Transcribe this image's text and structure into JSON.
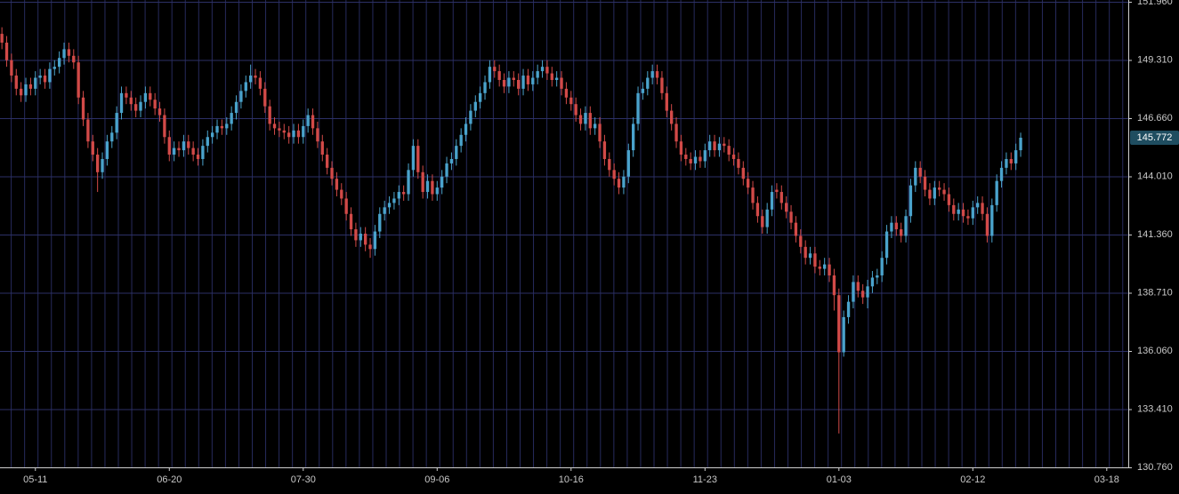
{
  "chart_data": {
    "type": "candlestick",
    "xlim": [
      -0.4,
      235.5
    ],
    "xticks": [
      {
        "value": 7,
        "label": "05-11"
      },
      {
        "value": 35,
        "label": "06-20"
      },
      {
        "value": 63,
        "label": "07-30"
      },
      {
        "value": 91,
        "label": "09-06"
      },
      {
        "value": 119,
        "label": "10-16"
      },
      {
        "value": 147,
        "label": "11-23"
      },
      {
        "value": 175,
        "label": "01-03"
      },
      {
        "value": 203,
        "label": "02-12"
      },
      {
        "value": 231,
        "label": "03-18"
      }
    ],
    "ylim": [
      130.76,
      151.96
    ],
    "yticks": [
      {
        "value": 151.96,
        "label": "151.960"
      },
      {
        "value": 149.31,
        "label": "149.310"
      },
      {
        "value": 146.66,
        "label": "146.660"
      },
      {
        "value": 144.01,
        "label": "144.010"
      },
      {
        "value": 141.36,
        "label": "141.360"
      },
      {
        "value": 138.71,
        "label": "138.710"
      },
      {
        "value": 136.06,
        "label": "136.060"
      },
      {
        "value": 133.41,
        "label": "133.410"
      },
      {
        "value": 130.76,
        "label": "130.760"
      }
    ],
    "grid": true,
    "up_color": "#4aa3cc",
    "down_color": "#d24a48",
    "last_price": 145.772,
    "open": [
      150.5,
      150.1,
      149.3,
      148.6,
      148.0,
      147.7,
      148.2,
      148.0,
      148.5,
      148.6,
      148.3,
      148.9,
      149.0,
      149.4,
      149.8,
      149.5,
      149.2,
      147.6,
      146.6,
      145.6,
      145.0,
      144.2,
      144.8,
      145.6,
      146.0,
      146.9,
      147.8,
      147.6,
      147.3,
      147.0,
      147.4,
      147.8,
      147.5,
      147.1,
      146.8,
      145.8,
      145.0,
      145.3,
      145.2,
      145.6,
      145.3,
      145.0,
      144.8,
      145.4,
      145.8,
      146.0,
      146.3,
      146.2,
      146.4,
      146.9,
      147.4,
      147.9,
      148.3,
      148.6,
      148.5,
      148.0,
      147.2,
      146.4,
      146.2,
      146.1,
      146.0,
      145.8,
      146.1,
      145.8,
      146.3,
      146.8,
      146.2,
      145.6,
      145.0,
      144.4,
      143.9,
      143.4,
      143.0,
      142.3,
      141.6,
      141.1,
      141.4,
      140.9,
      140.7,
      141.5,
      142.3,
      142.6,
      142.8,
      143.0,
      143.3,
      143.2,
      144.3,
      145.4,
      144.2,
      143.3,
      143.8,
      143.2,
      143.5,
      144.0,
      144.6,
      144.8,
      145.4,
      145.9,
      146.4,
      147.0,
      147.4,
      147.8,
      148.3,
      149.0,
      148.8,
      148.4,
      148.1,
      148.5,
      148.4,
      148.0,
      148.6,
      148.2,
      148.5,
      148.8,
      149.0,
      148.7,
      148.4,
      148.5,
      148.0,
      147.6,
      147.3,
      146.8,
      146.4,
      146.9,
      146.2,
      146.4,
      145.6,
      144.8,
      144.3,
      143.9,
      143.5,
      144.0,
      145.2,
      146.4,
      147.8,
      148.0,
      148.5,
      148.8,
      148.5,
      147.8,
      147.0,
      146.4,
      145.6,
      145.0,
      144.8,
      144.6,
      144.9,
      144.7,
      145.2,
      145.6,
      145.2,
      145.5,
      145.4,
      145.0,
      144.8,
      144.4,
      143.9,
      143.5,
      142.8,
      142.2,
      141.7,
      142.5,
      143.4,
      143.3,
      142.8,
      142.4,
      141.9,
      141.3,
      140.8,
      140.3,
      140.5,
      139.9,
      139.8,
      140.0,
      139.5,
      138.6,
      136.0,
      137.6,
      138.3,
      139.2,
      138.8,
      138.5,
      139.0,
      139.4,
      139.5,
      140.3,
      141.5,
      141.9,
      141.6,
      141.3,
      142.2,
      143.6,
      144.4,
      144.0,
      143.4,
      143.0,
      143.5,
      143.4,
      143.2,
      142.7,
      142.3,
      142.5,
      142.2,
      142.1,
      142.6,
      142.8,
      142.3,
      141.3,
      142.7,
      143.8,
      144.4,
      144.8,
      144.6,
      145.2
    ],
    "high": [
      150.8,
      150.4,
      149.6,
      148.9,
      148.3,
      148.5,
      148.5,
      148.8,
      148.9,
      148.9,
      149.2,
      149.3,
      149.7,
      150.1,
      150.1,
      149.8,
      149.5,
      147.9,
      146.9,
      145.9,
      145.3,
      145.1,
      145.9,
      146.3,
      147.2,
      148.1,
      148.1,
      147.9,
      147.6,
      147.7,
      148.1,
      148.1,
      147.8,
      147.4,
      147.1,
      146.1,
      145.6,
      145.6,
      145.9,
      145.9,
      145.6,
      145.3,
      145.7,
      146.1,
      146.3,
      146.6,
      146.6,
      146.7,
      147.2,
      147.7,
      148.2,
      148.6,
      149.1,
      148.9,
      148.8,
      148.3,
      147.5,
      146.7,
      146.5,
      146.4,
      146.3,
      146.4,
      146.4,
      146.6,
      147.1,
      147.1,
      146.5,
      145.9,
      145.3,
      144.7,
      144.2,
      143.7,
      143.3,
      142.6,
      141.9,
      141.7,
      141.7,
      141.2,
      141.8,
      142.6,
      142.9,
      143.1,
      143.3,
      143.6,
      143.6,
      144.6,
      145.7,
      145.7,
      144.5,
      144.1,
      144.1,
      143.8,
      144.3,
      144.9,
      145.1,
      145.7,
      146.2,
      146.7,
      147.3,
      147.7,
      148.1,
      148.6,
      149.3,
      149.3,
      149.1,
      148.7,
      148.8,
      148.8,
      148.7,
      148.9,
      148.9,
      148.8,
      149.1,
      149.3,
      149.3,
      149.0,
      148.8,
      148.8,
      148.3,
      147.9,
      147.6,
      147.1,
      147.2,
      147.2,
      146.7,
      146.7,
      145.9,
      145.1,
      144.6,
      144.2,
      144.3,
      145.5,
      146.7,
      148.1,
      148.3,
      148.8,
      149.1,
      149.1,
      148.8,
      148.1,
      147.3,
      146.7,
      145.9,
      145.3,
      145.1,
      145.2,
      145.2,
      145.5,
      145.9,
      145.9,
      145.8,
      145.8,
      145.7,
      145.3,
      145.1,
      144.7,
      144.2,
      143.8,
      143.1,
      142.5,
      142.8,
      143.6,
      143.7,
      143.6,
      143.1,
      142.7,
      142.2,
      141.6,
      141.1,
      140.8,
      140.8,
      140.2,
      140.3,
      140.3,
      139.8,
      138.9,
      137.9,
      138.6,
      139.5,
      139.5,
      139.1,
      139.3,
      139.7,
      139.8,
      140.6,
      141.8,
      142.2,
      142.2,
      141.9,
      142.5,
      143.9,
      144.7,
      144.7,
      144.3,
      143.7,
      143.8,
      143.8,
      143.7,
      143.5,
      143.0,
      142.8,
      142.8,
      142.5,
      142.9,
      143.1,
      143.1,
      142.6,
      143.0,
      144.1,
      144.7,
      145.1,
      145.1,
      145.5,
      146.0
    ],
    "low": [
      149.8,
      149.0,
      148.3,
      147.7,
      147.4,
      147.4,
      147.7,
      147.7,
      148.2,
      148.0,
      148.0,
      148.6,
      148.7,
      149.1,
      149.2,
      148.9,
      147.3,
      146.3,
      145.3,
      144.7,
      143.3,
      143.9,
      144.5,
      145.3,
      145.7,
      146.6,
      147.3,
      147.0,
      146.7,
      146.7,
      147.1,
      147.2,
      146.8,
      146.5,
      145.5,
      144.7,
      144.7,
      144.9,
      144.9,
      145.0,
      144.7,
      144.5,
      144.5,
      145.1,
      145.5,
      145.7,
      145.9,
      145.9,
      146.1,
      146.6,
      147.1,
      147.6,
      148.0,
      148.2,
      147.7,
      146.9,
      146.1,
      145.9,
      145.8,
      145.7,
      145.5,
      145.5,
      145.5,
      145.5,
      146.0,
      145.9,
      145.3,
      144.7,
      144.1,
      143.6,
      143.1,
      142.7,
      142.0,
      141.3,
      140.8,
      140.8,
      140.6,
      140.3,
      140.4,
      141.2,
      142.0,
      142.3,
      142.5,
      142.7,
      142.9,
      142.9,
      144.0,
      143.9,
      143.0,
      143.0,
      142.9,
      142.9,
      143.2,
      143.7,
      144.3,
      144.5,
      145.1,
      145.6,
      146.1,
      146.7,
      147.1,
      147.5,
      148.0,
      148.5,
      148.1,
      147.8,
      147.8,
      148.1,
      147.7,
      147.7,
      147.9,
      147.9,
      148.2,
      148.5,
      148.4,
      148.1,
      148.1,
      147.7,
      147.3,
      147.0,
      146.5,
      146.1,
      146.1,
      145.9,
      145.9,
      145.3,
      144.5,
      144.0,
      143.6,
      143.2,
      143.2,
      143.7,
      144.9,
      146.1,
      147.5,
      147.7,
      148.2,
      148.2,
      147.5,
      146.7,
      146.1,
      145.3,
      144.7,
      144.5,
      144.3,
      144.3,
      144.4,
      144.4,
      144.9,
      144.9,
      144.9,
      145.1,
      144.7,
      144.5,
      144.1,
      143.6,
      143.2,
      142.5,
      141.9,
      141.4,
      141.4,
      142.2,
      143.0,
      142.5,
      142.1,
      141.6,
      141.0,
      140.5,
      140.0,
      140.0,
      139.6,
      139.5,
      139.5,
      139.2,
      137.9,
      132.3,
      135.8,
      137.3,
      138.0,
      138.5,
      138.2,
      138.0,
      138.7,
      139.1,
      139.2,
      140.0,
      141.2,
      141.3,
      141.0,
      141.0,
      141.9,
      143.3,
      143.7,
      143.1,
      142.7,
      142.7,
      143.1,
      142.9,
      142.4,
      142.0,
      142.0,
      141.9,
      141.8,
      141.8,
      142.3,
      142.0,
      141.0,
      141.0,
      142.4,
      143.5,
      144.1,
      144.3,
      144.3,
      144.9
    ],
    "close": [
      150.1,
      149.3,
      148.6,
      148.0,
      147.7,
      148.2,
      148.0,
      148.5,
      148.6,
      148.3,
      148.9,
      149.0,
      149.4,
      149.8,
      149.5,
      149.2,
      147.6,
      146.6,
      145.6,
      145.0,
      144.2,
      144.8,
      145.6,
      146.0,
      146.9,
      147.8,
      147.6,
      147.3,
      147.0,
      147.4,
      147.8,
      147.5,
      147.1,
      146.8,
      145.8,
      145.0,
      145.3,
      145.2,
      145.6,
      145.3,
      145.0,
      144.8,
      145.4,
      145.8,
      146.0,
      146.3,
      146.2,
      146.4,
      146.9,
      147.4,
      147.9,
      148.3,
      148.6,
      148.5,
      148.0,
      147.2,
      146.4,
      146.2,
      146.1,
      146.0,
      145.8,
      146.1,
      145.8,
      146.3,
      146.8,
      146.2,
      145.6,
      145.0,
      144.4,
      143.9,
      143.4,
      143.0,
      142.3,
      141.6,
      141.1,
      141.4,
      140.9,
      140.7,
      141.5,
      142.3,
      142.6,
      142.8,
      143.0,
      143.3,
      143.2,
      144.3,
      145.4,
      144.2,
      143.3,
      143.8,
      143.2,
      143.5,
      144.0,
      144.6,
      144.8,
      145.4,
      145.9,
      146.4,
      147.0,
      147.4,
      147.8,
      148.3,
      149.0,
      148.8,
      148.4,
      148.1,
      148.5,
      148.4,
      148.0,
      148.6,
      148.2,
      148.5,
      148.8,
      149.0,
      148.7,
      148.4,
      148.5,
      148.0,
      147.6,
      147.3,
      146.8,
      146.4,
      146.9,
      146.2,
      146.4,
      145.6,
      144.8,
      144.3,
      143.9,
      143.5,
      144.0,
      145.2,
      146.4,
      147.8,
      148.0,
      148.5,
      148.8,
      148.5,
      147.8,
      147.0,
      146.4,
      145.6,
      145.0,
      144.8,
      144.6,
      144.9,
      144.7,
      145.2,
      145.6,
      145.2,
      145.5,
      145.4,
      145.0,
      144.8,
      144.4,
      143.9,
      143.5,
      142.8,
      142.2,
      141.7,
      142.5,
      143.3,
      143.3,
      142.8,
      142.4,
      141.9,
      141.3,
      140.8,
      140.3,
      140.5,
      139.9,
      139.8,
      140.0,
      139.5,
      138.6,
      136.0,
      137.6,
      138.3,
      139.2,
      138.8,
      138.5,
      139.0,
      139.4,
      139.5,
      140.3,
      141.5,
      141.9,
      141.6,
      141.3,
      142.2,
      143.6,
      144.4,
      144.0,
      143.4,
      143.0,
      143.5,
      143.4,
      143.2,
      142.7,
      142.3,
      142.5,
      142.2,
      142.1,
      142.6,
      142.8,
      142.3,
      141.3,
      142.7,
      143.8,
      144.4,
      144.8,
      144.6,
      145.2,
      145.77
    ]
  }
}
